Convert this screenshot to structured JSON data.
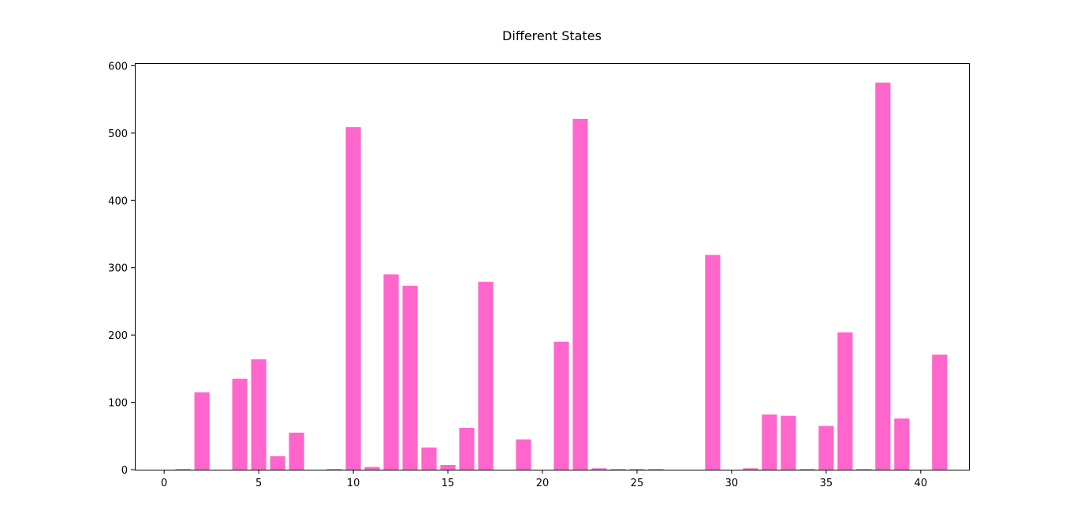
{
  "chart_data": {
    "type": "bar",
    "title": "Different States",
    "xlabel": "",
    "ylabel": "",
    "bar_color": "#ff66cc",
    "x": [
      0,
      1,
      2,
      3,
      4,
      5,
      6,
      7,
      8,
      9,
      10,
      11,
      12,
      13,
      14,
      15,
      16,
      17,
      18,
      19,
      20,
      21,
      22,
      23,
      24,
      25,
      26,
      27,
      28,
      29,
      30,
      31,
      32,
      33,
      34,
      35,
      36,
      37,
      38,
      39,
      40,
      41
    ],
    "values": [
      0,
      1,
      115,
      0,
      135,
      164,
      20,
      55,
      0,
      1,
      509,
      4,
      290,
      273,
      33,
      7,
      62,
      279,
      0,
      45,
      0,
      190,
      521,
      2,
      1,
      1,
      1,
      0,
      0,
      319,
      0,
      2,
      82,
      80,
      1,
      65,
      204,
      1,
      575,
      76,
      0,
      171
    ],
    "xlim": [
      -1.55,
      42.55
    ],
    "ylim": [
      0,
      604
    ],
    "x_ticks": [
      0,
      5,
      10,
      15,
      20,
      25,
      30,
      35,
      40
    ],
    "y_ticks": [
      0,
      100,
      200,
      300,
      400,
      500,
      600
    ],
    "grid": false
  }
}
